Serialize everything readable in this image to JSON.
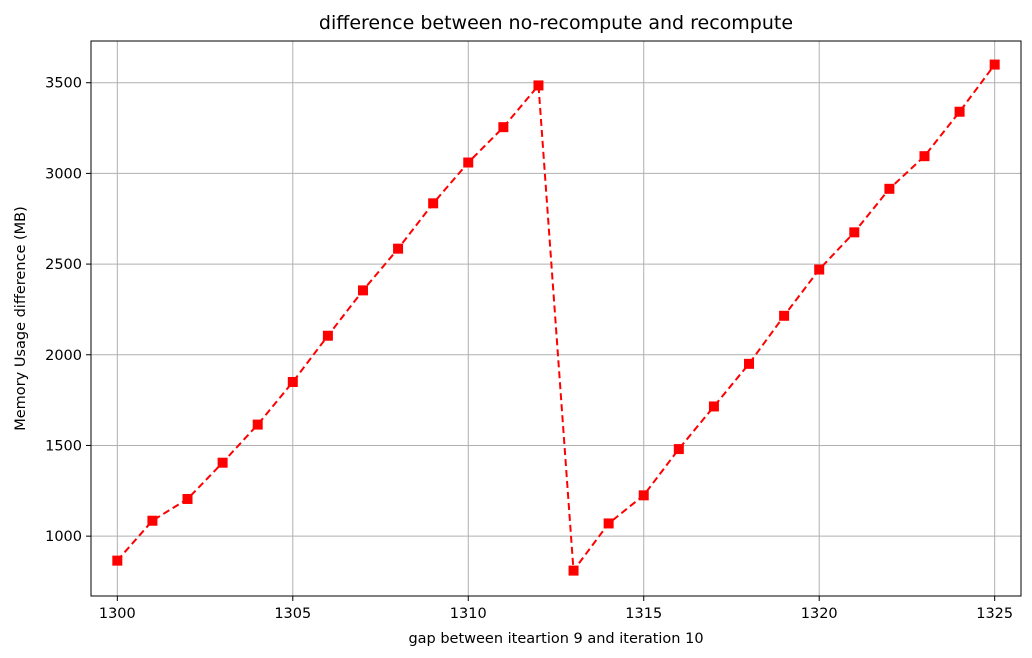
{
  "chart_data": {
    "type": "line",
    "title": "difference between no-recompute and recompute",
    "xlabel": "gap between iteartion 9 and iteration 10",
    "ylabel": "Memory Usage difference (MB)",
    "xlim": [
      1299.25,
      1325.75
    ],
    "ylim": [
      670,
      3730
    ],
    "xticks": [
      1300,
      1305,
      1310,
      1315,
      1320,
      1325
    ],
    "yticks": [
      1000,
      1500,
      2000,
      2500,
      3000,
      3500
    ],
    "grid": true,
    "series": [
      {
        "color": "#ff0000",
        "linestyle": "dashed",
        "marker": "square",
        "x": [
          1300,
          1301,
          1302,
          1303,
          1304,
          1305,
          1306,
          1307,
          1308,
          1309,
          1310,
          1311,
          1312,
          1313,
          1314,
          1315,
          1316,
          1317,
          1318,
          1319,
          1320,
          1321,
          1322,
          1323,
          1324,
          1325
        ],
        "y": [
          865,
          1085,
          1205,
          1405,
          1615,
          1850,
          2105,
          2355,
          2585,
          2835,
          3060,
          3255,
          3485,
          810,
          1070,
          1225,
          1480,
          1715,
          1950,
          2215,
          2470,
          2675,
          2915,
          3095,
          3340,
          3600
        ]
      }
    ]
  }
}
